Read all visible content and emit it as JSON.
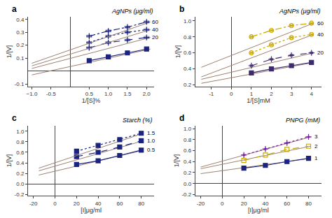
{
  "chart_data": [
    {
      "type": "line",
      "title": "a",
      "annotation": "AgNPs (μg/ml)",
      "xlabel": "1/[S]%",
      "ylabel": "1/[V]",
      "xlim": [
        -1.1,
        2.2
      ],
      "ylim": [
        -0.12,
        0.42
      ],
      "xticks": [
        {
          "value": -1.0,
          "label": "−1.0"
        },
        -0.5,
        0.5,
        {
          "value": 1.0,
          "label": "1.0"
        },
        1.5,
        {
          "value": 2.0,
          "label": "2.0"
        }
      ],
      "yticks": [
        -0.1,
        0.1,
        0.2,
        0.3,
        0.4
      ],
      "grid": false,
      "series": [
        {
          "x": [
            -1.0,
            2.1
          ],
          "values": [
            -0.03,
            0.17
          ],
          "color": "#9e8070",
          "marker": "none",
          "line_style": "solid"
        },
        {
          "x": [
            0.5,
            1.0,
            1.5,
            2.0
          ],
          "values": [
            0.08,
            0.11,
            0.14,
            0.17
          ],
          "color": "#1a237e",
          "marker": "square",
          "line_style": "solid"
        },
        {
          "x": [
            -1.0,
            2.1
          ],
          "values": [
            0.02,
            0.26
          ],
          "color": "#9e8070",
          "marker": "none",
          "line_style": "solid"
        },
        {
          "name": "20",
          "x": [
            0.5,
            1.0,
            1.5,
            2.0
          ],
          "values": [
            0.18,
            0.22,
            0.24,
            0.26
          ],
          "color": "#1a237e",
          "marker": "cross",
          "line_style": "dashed",
          "x_error": [
            0.06,
            0.06,
            0.06,
            0.06
          ],
          "y_error": [
            0.008,
            0.008,
            0.008,
            0.008
          ]
        },
        {
          "x": [
            -1.0,
            2.1
          ],
          "values": [
            0.04,
            0.32
          ],
          "color": "#9e8070",
          "marker": "none",
          "line_style": "solid"
        },
        {
          "name": "40",
          "x": [
            0.5,
            1.0,
            1.5,
            2.0
          ],
          "values": [
            0.22,
            0.27,
            0.3,
            0.32
          ],
          "color": "#1a237e",
          "marker": "cross",
          "line_style": "dotted",
          "x_error": [
            0.06,
            0.06,
            0.06,
            0.06
          ],
          "y_error": [
            0.008,
            0.008,
            0.008,
            0.008
          ]
        },
        {
          "x": [
            -1.0,
            2.1
          ],
          "values": [
            0.06,
            0.38
          ],
          "color": "#9e8070",
          "marker": "none",
          "line_style": "solid"
        },
        {
          "name": "60",
          "x": [
            0.5,
            1.0,
            1.5,
            2.0
          ],
          "values": [
            0.27,
            0.31,
            0.34,
            0.38
          ],
          "color": "#1a237e",
          "marker": "cross",
          "line_style": "dashdot",
          "x_error": [
            0.06,
            0.06,
            0.06,
            0.06
          ],
          "y_error": [
            0.008,
            0.008,
            0.008,
            0.008
          ]
        }
      ]
    },
    {
      "type": "line",
      "title": "b",
      "annotation": "AgNPs (μg/ml)",
      "xlabel": "1/[S]mM",
      "ylabel": "1/[V]",
      "xlim": [
        -1.8,
        4.5
      ],
      "ylim": [
        0.18,
        1.05
      ],
      "xticks": [
        -1,
        0,
        1,
        2,
        3,
        4
      ],
      "yticks": [
        0.2,
        0.4,
        0.6,
        0.8,
        {
          "value": 1.0,
          "label": "1.0"
        }
      ],
      "grid": false,
      "series": [
        {
          "x": [
            -1.5,
            4.1
          ],
          "values": [
            0.22,
            0.48
          ],
          "color": "#9e8070",
          "marker": "none",
          "line_style": "solid"
        },
        {
          "x": [
            1.0,
            2.0,
            3.0,
            4.0
          ],
          "values": [
            0.35,
            0.4,
            0.44,
            0.48
          ],
          "color": "#3d2b6e",
          "marker": "square",
          "line_style": "solid"
        },
        {
          "x": [
            -1.5,
            4.1
          ],
          "values": [
            0.27,
            0.6
          ],
          "color": "#9e8070",
          "marker": "none",
          "line_style": "solid"
        },
        {
          "name": "20",
          "x": [
            1.0,
            2.0,
            3.0,
            4.0
          ],
          "values": [
            0.44,
            0.52,
            0.57,
            0.6
          ],
          "color": "#3d2b6e",
          "marker": "cross",
          "line_style": "dashed",
          "x_error": [
            0.06,
            0.06,
            0.06,
            0.06
          ],
          "y_error": [
            0.008,
            0.008,
            0.008,
            0.008
          ]
        },
        {
          "x": [
            -1.5,
            4.1
          ],
          "values": [
            0.3,
            0.83
          ],
          "color": "#9e8070",
          "marker": "none",
          "line_style": "solid"
        },
        {
          "name": "40",
          "x": [
            1.0,
            2.0,
            3.0,
            4.0
          ],
          "values": [
            0.6,
            0.7,
            0.79,
            0.83
          ],
          "color": "#c9a800",
          "marker": "circle",
          "line_style": "dotted",
          "x_error": [
            0.06,
            0.06,
            0.06,
            0.06
          ],
          "y_error": [
            0.008,
            0.008,
            0.008,
            0.008
          ]
        },
        {
          "x": [
            -1.5,
            4.1
          ],
          "values": [
            0.42,
            0.97
          ],
          "color": "#9e8070",
          "marker": "none",
          "line_style": "solid"
        },
        {
          "name": "60",
          "x": [
            1.0,
            2.0,
            3.0,
            4.0
          ],
          "values": [
            0.8,
            0.88,
            0.94,
            0.97
          ],
          "color": "#c9a800",
          "marker": "circle",
          "line_style": "dashdot",
          "x_error": [
            0.06,
            0.06,
            0.06,
            0.06
          ],
          "y_error": [
            0.008,
            0.008,
            0.008,
            0.008
          ]
        }
      ]
    },
    {
      "type": "line",
      "title": "c",
      "annotation": "Starch (%)",
      "xlabel": "[I]μg/ml",
      "ylabel": "1/[V]",
      "xlim": [
        -25,
        92
      ],
      "ylim": [
        -0.22,
        1.1
      ],
      "xticks": [
        -20,
        0,
        20,
        40,
        60,
        80
      ],
      "yticks": [
        -0.2,
        {
          "value": 0.0,
          "label": "0.0"
        },
        0.2,
        0.4,
        0.6,
        0.8,
        {
          "value": 1.0,
          "label": "1.0"
        }
      ],
      "grid": false,
      "series": [
        {
          "x": [
            -15,
            82
          ],
          "values": [
            0.17,
            0.64
          ],
          "color": "#9e8070",
          "marker": "none",
          "line_style": "solid"
        },
        {
          "name": "0.5",
          "x": [
            20,
            40,
            60,
            80
          ],
          "values": [
            0.37,
            0.44,
            0.54,
            0.64
          ],
          "color": "#1a237e",
          "marker": "square",
          "line_style": "solid"
        },
        {
          "x": [
            -15,
            82
          ],
          "values": [
            0.25,
            0.82
          ],
          "color": "#9e8070",
          "marker": "none",
          "line_style": "solid"
        },
        {
          "name": "1.0",
          "x": [
            20,
            40,
            60,
            80
          ],
          "values": [
            0.52,
            0.6,
            0.7,
            0.82
          ],
          "color": "#1a237e",
          "marker": "square",
          "line_style": "dashed"
        },
        {
          "x": [
            -15,
            82
          ],
          "values": [
            0.3,
            0.96
          ],
          "color": "#9e8070",
          "marker": "none",
          "line_style": "solid"
        },
        {
          "name": "1.5",
          "x": [
            20,
            40,
            60,
            80
          ],
          "values": [
            0.62,
            0.73,
            0.84,
            0.96
          ],
          "color": "#1a237e",
          "marker": "square",
          "line_style": "dotted"
        }
      ]
    },
    {
      "type": "line",
      "title": "d",
      "annotation": "PNPG (mM)",
      "xlabel": "[I]μg/ml",
      "ylabel": "1/[V]",
      "xlim": [
        -25,
        92
      ],
      "ylim": [
        -0.22,
        1.05
      ],
      "xticks": [
        -20,
        0,
        20,
        40,
        60,
        80
      ],
      "yticks": [
        -0.2,
        {
          "value": 0.0,
          "label": "0.0"
        },
        0.2,
        0.4,
        0.6,
        0.8,
        {
          "value": 1.0,
          "label": "1.0"
        }
      ],
      "grid": false,
      "series": [
        {
          "x": [
            -20,
            82
          ],
          "values": [
            0.18,
            0.46
          ],
          "color": "#9e8070",
          "marker": "none",
          "line_style": "solid"
        },
        {
          "name": "1",
          "x": [
            20,
            40,
            60,
            80
          ],
          "values": [
            0.28,
            0.33,
            0.4,
            0.46
          ],
          "color": "#1a237e",
          "marker": "square",
          "line_style": "solid"
        },
        {
          "x": [
            -20,
            82
          ],
          "values": [
            0.27,
            0.68
          ],
          "color": "#9e8070",
          "marker": "none",
          "line_style": "solid"
        },
        {
          "name": "2",
          "x": [
            20,
            40,
            60,
            80
          ],
          "values": [
            0.42,
            0.52,
            0.62,
            0.68
          ],
          "color": "#c9a800",
          "marker": "square_open",
          "line_style": "dashed"
        },
        {
          "x": [
            -20,
            82
          ],
          "values": [
            0.3,
            0.85
          ],
          "color": "#9e8070",
          "marker": "none",
          "line_style": "solid"
        },
        {
          "name": "3",
          "x": [
            20,
            40,
            60,
            80
          ],
          "values": [
            0.52,
            0.63,
            0.74,
            0.85
          ],
          "color": "#7b1fa2",
          "marker": "cross",
          "line_style": "dotted",
          "x_error": [
            0.06,
            0.06,
            0.06,
            0.06
          ],
          "y_error": [
            0.008,
            0.008,
            0.008,
            0.008
          ]
        }
      ]
    }
  ]
}
